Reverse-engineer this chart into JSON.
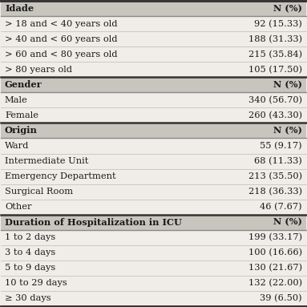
{
  "rows": [
    {
      "label": "Idade",
      "value": "N (%)",
      "is_header": true
    },
    {
      "label": "> 18 and < 40 years old",
      "value": "92 (15.33)",
      "is_header": false
    },
    {
      "label": "> 40 and < 60 years old",
      "value": "188 (31.33)",
      "is_header": false
    },
    {
      "label": "> 60 and < 80 years old",
      "value": "215 (35.84)",
      "is_header": false
    },
    {
      "label": "> 80 years old",
      "value": "105 (17.50)",
      "is_header": false
    },
    {
      "label": "Gender",
      "value": "N (%)",
      "is_header": true
    },
    {
      "label": "Male",
      "value": "340 (56.70)",
      "is_header": false
    },
    {
      "label": "Female",
      "value": "260 (43.30)",
      "is_header": false
    },
    {
      "label": "Origin",
      "value": "N (%)",
      "is_header": true
    },
    {
      "label": "Ward",
      "value": "55 (9.17)",
      "is_header": false
    },
    {
      "label": "Intermediate Unit",
      "value": "68 (11.33)",
      "is_header": false
    },
    {
      "label": "Emergency Department",
      "value": "213 (35.50)",
      "is_header": false
    },
    {
      "label": "Surgical Room",
      "value": "218 (36.33)",
      "is_header": false
    },
    {
      "label": "Other",
      "value": "46 (7.67)",
      "is_header": false
    },
    {
      "label": "Duration of Hospitalization in ICU",
      "value": "N (%)",
      "is_header": true
    },
    {
      "label": "1 to 2 days",
      "value": "199 (33.17)",
      "is_header": false
    },
    {
      "label": "3 to 4 days",
      "value": "100 (16.66)",
      "is_header": false
    },
    {
      "label": "5 to 9 days",
      "value": "130 (21.67)",
      "is_header": false
    },
    {
      "label": "10 to 29 days",
      "value": "132 (22.00)",
      "is_header": false
    },
    {
      "label": "≥ 30 days",
      "value": "39 (6.50)",
      "is_header": false
    }
  ],
  "bg_color": "#f0ede8",
  "header_bg": "#c8c5be",
  "text_color": "#1a1a1a",
  "font_size": 8.2,
  "header_font_size": 8.2,
  "thick_line_color": "#333333",
  "thin_line_color": "#888888",
  "data_line_color": "#bbbbbb"
}
